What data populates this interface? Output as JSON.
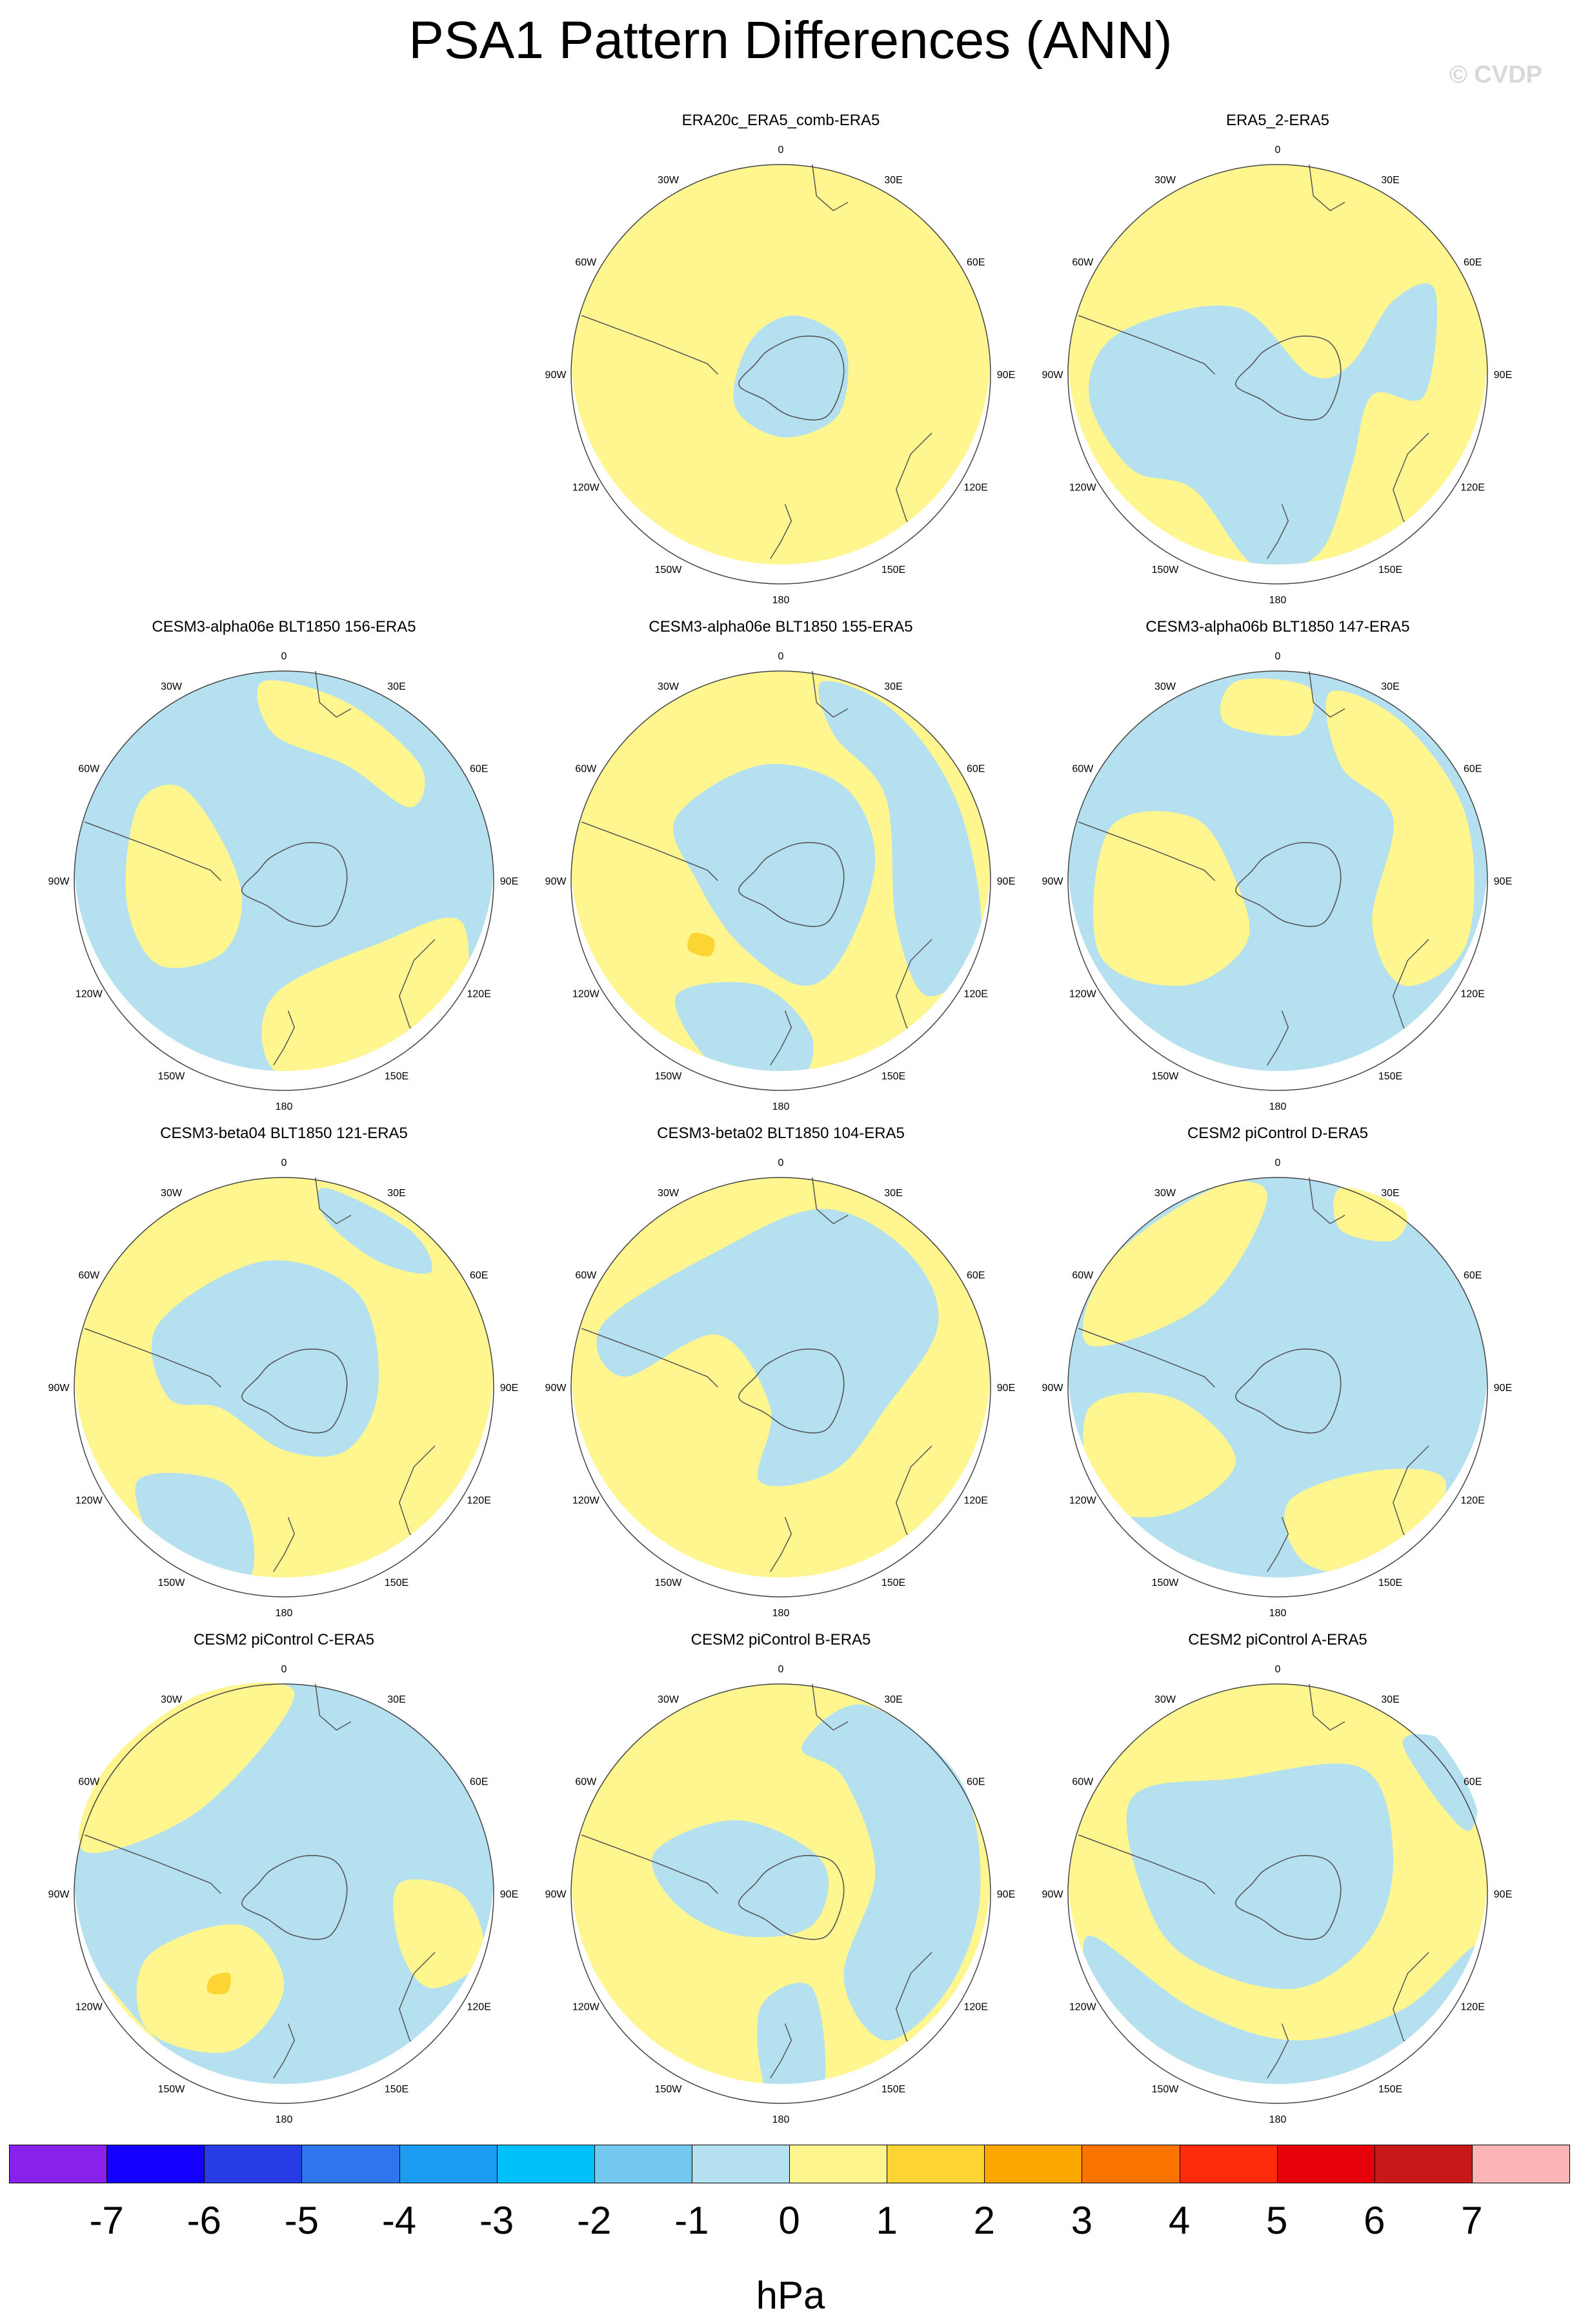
{
  "title": "PSA1 Pattern Differences (ANN)",
  "watermark": "© CVDP",
  "colors": {
    "pos": "#fff68f",
    "neg": "#b4e0f0",
    "pos2": "#fcd534",
    "coast": "#555555"
  },
  "lon_labels": [
    "0",
    "30E",
    "60E",
    "90E",
    "120E",
    "150E",
    "180",
    "150W",
    "120W",
    "90W",
    "60W",
    "30W"
  ],
  "panels": [
    {
      "title": "ERA20c_ERA5_comb-ERA5",
      "base": "pos",
      "blobs": [
        {
          "c": "neg",
          "pts": [
            [
              -0.15,
              0.15
            ],
            [
              0.05,
              0.28
            ],
            [
              0.28,
              0.18
            ],
            [
              0.32,
              -0.02
            ],
            [
              0.25,
              -0.22
            ],
            [
              0.0,
              -0.3
            ],
            [
              -0.22,
              -0.15
            ]
          ]
        }
      ]
    },
    {
      "title": "ERA5_2-ERA5",
      "base": "pos",
      "blobs": [
        {
          "c": "neg",
          "pts": [
            [
              -0.75,
              0.2
            ],
            [
              -0.2,
              0.32
            ],
            [
              0.15,
              0.0
            ],
            [
              0.35,
              0.05
            ],
            [
              0.55,
              0.35
            ],
            [
              0.75,
              0.4
            ],
            [
              0.7,
              -0.1
            ],
            [
              0.45,
              -0.1
            ],
            [
              0.35,
              -0.45
            ],
            [
              0.2,
              -0.85
            ],
            [
              -0.1,
              -0.92
            ],
            [
              -0.4,
              -0.55
            ],
            [
              -0.7,
              -0.45
            ],
            [
              -0.9,
              -0.1
            ]
          ]
        }
      ]
    },
    {
      "title": "CESM3-alpha06e BLT1850 156-ERA5",
      "base": "neg",
      "blobs": [
        {
          "c": "pos",
          "pts": [
            [
              -0.7,
              0.35
            ],
            [
              -0.5,
              0.45
            ],
            [
              -0.3,
              0.2
            ],
            [
              -0.2,
              -0.1
            ],
            [
              -0.3,
              -0.35
            ],
            [
              -0.6,
              -0.4
            ],
            [
              -0.75,
              -0.1
            ]
          ]
        },
        {
          "c": "pos",
          "pts": [
            [
              -0.1,
              0.95
            ],
            [
              0.3,
              0.85
            ],
            [
              0.65,
              0.55
            ],
            [
              0.6,
              0.35
            ],
            [
              0.3,
              0.55
            ],
            [
              -0.05,
              0.7
            ]
          ]
        },
        {
          "c": "pos",
          "pts": [
            [
              -0.05,
              -0.55
            ],
            [
              0.45,
              -0.3
            ],
            [
              0.85,
              -0.2
            ],
            [
              0.8,
              -0.75
            ],
            [
              0.35,
              -0.95
            ],
            [
              -0.05,
              -0.9
            ]
          ]
        }
      ]
    },
    {
      "title": "CESM3-alpha06e BLT1850 155-ERA5",
      "base": "pos",
      "blobs": [
        {
          "c": "neg",
          "pts": [
            [
              -0.5,
              0.3
            ],
            [
              -0.1,
              0.55
            ],
            [
              0.3,
              0.45
            ],
            [
              0.45,
              0.1
            ],
            [
              0.3,
              -0.35
            ],
            [
              0.1,
              -0.5
            ],
            [
              -0.2,
              -0.3
            ],
            [
              -0.4,
              0.0
            ]
          ]
        },
        {
          "c": "neg",
          "pts": [
            [
              0.2,
              0.95
            ],
            [
              0.55,
              0.8
            ],
            [
              0.85,
              0.35
            ],
            [
              0.95,
              -0.3
            ],
            [
              0.7,
              -0.55
            ],
            [
              0.55,
              -0.2
            ],
            [
              0.5,
              0.4
            ],
            [
              0.25,
              0.7
            ]
          ]
        },
        {
          "c": "neg",
          "pts": [
            [
              -0.5,
              -0.55
            ],
            [
              -0.1,
              -0.5
            ],
            [
              0.15,
              -0.75
            ],
            [
              0.05,
              -0.98
            ],
            [
              -0.3,
              -0.9
            ]
          ]
        },
        {
          "c": "pos2",
          "pts": [
            [
              -0.42,
              -0.25
            ],
            [
              -0.32,
              -0.28
            ],
            [
              -0.34,
              -0.36
            ],
            [
              -0.44,
              -0.33
            ]
          ]
        }
      ]
    },
    {
      "title": "CESM3-alpha06b BLT1850 147-ERA5",
      "base": "neg",
      "blobs": [
        {
          "c": "pos",
          "pts": [
            [
              -0.8,
              0.25
            ],
            [
              -0.4,
              0.3
            ],
            [
              -0.2,
              0.0
            ],
            [
              -0.15,
              -0.3
            ],
            [
              -0.45,
              -0.5
            ],
            [
              -0.85,
              -0.35
            ]
          ]
        },
        {
          "c": "pos",
          "pts": [
            [
              0.25,
              0.9
            ],
            [
              0.6,
              0.75
            ],
            [
              0.9,
              0.3
            ],
            [
              0.9,
              -0.3
            ],
            [
              0.6,
              -0.5
            ],
            [
              0.45,
              -0.2
            ],
            [
              0.55,
              0.3
            ],
            [
              0.3,
              0.55
            ]
          ]
        },
        {
          "c": "pos",
          "pts": [
            [
              -0.2,
              0.95
            ],
            [
              0.15,
              0.92
            ],
            [
              0.1,
              0.7
            ],
            [
              -0.25,
              0.75
            ]
          ]
        }
      ]
    },
    {
      "title": "CESM3-beta04 BLT1850 121-ERA5",
      "base": "pos",
      "blobs": [
        {
          "c": "neg",
          "pts": [
            [
              -0.6,
              0.3
            ],
            [
              -0.1,
              0.6
            ],
            [
              0.35,
              0.45
            ],
            [
              0.45,
              0.0
            ],
            [
              0.3,
              -0.3
            ],
            [
              0.0,
              -0.3
            ],
            [
              -0.3,
              -0.1
            ],
            [
              -0.55,
              -0.05
            ]
          ]
        },
        {
          "c": "neg",
          "pts": [
            [
              0.2,
              0.95
            ],
            [
              0.6,
              0.75
            ],
            [
              0.7,
              0.55
            ],
            [
              0.45,
              0.6
            ],
            [
              0.2,
              0.8
            ]
          ]
        },
        {
          "c": "neg",
          "pts": [
            [
              -0.7,
              -0.45
            ],
            [
              -0.3,
              -0.45
            ],
            [
              -0.15,
              -0.7
            ],
            [
              -0.2,
              -0.95
            ],
            [
              -0.55,
              -0.85
            ]
          ]
        }
      ]
    },
    {
      "title": "CESM3-beta02 BLT1850 104-ERA5",
      "base": "pos",
      "blobs": [
        {
          "c": "neg",
          "pts": [
            [
              -0.85,
              0.3
            ],
            [
              -0.3,
              0.65
            ],
            [
              0.2,
              0.85
            ],
            [
              0.6,
              0.65
            ],
            [
              0.75,
              0.3
            ],
            [
              0.5,
              -0.1
            ],
            [
              0.25,
              -0.4
            ],
            [
              -0.1,
              -0.45
            ],
            [
              -0.05,
              -0.1
            ],
            [
              -0.3,
              0.25
            ],
            [
              -0.75,
              0.05
            ]
          ]
        }
      ]
    },
    {
      "title": "CESM2 piControl D-ERA5",
      "base": "neg",
      "blobs": [
        {
          "c": "pos",
          "pts": [
            [
              -0.9,
              0.2
            ],
            [
              -0.35,
              0.4
            ],
            [
              -0.05,
              0.9
            ],
            [
              -0.3,
              0.95
            ],
            [
              -0.8,
              0.6
            ]
          ]
        },
        {
          "c": "pos",
          "pts": [
            [
              -0.9,
              -0.1
            ],
            [
              -0.5,
              -0.05
            ],
            [
              -0.2,
              -0.35
            ],
            [
              -0.5,
              -0.6
            ],
            [
              -0.85,
              -0.55
            ]
          ]
        },
        {
          "c": "pos",
          "pts": [
            [
              0.05,
              -0.55
            ],
            [
              0.45,
              -0.4
            ],
            [
              0.8,
              -0.45
            ],
            [
              0.6,
              -0.85
            ],
            [
              0.15,
              -0.85
            ]
          ]
        },
        {
          "c": "pos",
          "pts": [
            [
              0.3,
              0.95
            ],
            [
              0.6,
              0.85
            ],
            [
              0.55,
              0.7
            ],
            [
              0.3,
              0.75
            ]
          ]
        }
      ]
    },
    {
      "title": "CESM2 piControl C-ERA5",
      "base": "neg",
      "blobs": [
        {
          "c": "pos",
          "pts": [
            [
              -0.95,
              0.2
            ],
            [
              -0.4,
              0.4
            ],
            [
              0.05,
              0.95
            ],
            [
              -0.4,
              0.95
            ],
            [
              -0.85,
              0.6
            ]
          ]
        },
        {
          "c": "pos",
          "pts": [
            [
              -0.65,
              -0.3
            ],
            [
              -0.2,
              -0.15
            ],
            [
              0.0,
              -0.45
            ],
            [
              -0.25,
              -0.75
            ],
            [
              -0.65,
              -0.65
            ]
          ]
        },
        {
          "c": "pos",
          "pts": [
            [
              0.55,
              0.05
            ],
            [
              0.85,
              0.0
            ],
            [
              0.95,
              -0.3
            ],
            [
              0.7,
              -0.45
            ],
            [
              0.55,
              -0.25
            ]
          ]
        },
        {
          "c": "pos",
          "pts": [
            [
              -0.95,
              -0.35
            ],
            [
              -0.7,
              -0.6
            ],
            [
              -0.4,
              -0.95
            ],
            [
              -0.95,
              -0.7
            ]
          ]
        },
        {
          "c": "pos2",
          "pts": [
            [
              -0.35,
              -0.4
            ],
            [
              -0.26,
              -0.38
            ],
            [
              -0.27,
              -0.47
            ],
            [
              -0.36,
              -0.47
            ]
          ]
        }
      ]
    },
    {
      "title": "CESM2 piControl B-ERA5",
      "base": "pos",
      "blobs": [
        {
          "c": "neg",
          "pts": [
            [
              -0.6,
              0.2
            ],
            [
              -0.2,
              0.35
            ],
            [
              0.2,
              0.15
            ],
            [
              0.15,
              -0.15
            ],
            [
              -0.2,
              -0.2
            ],
            [
              -0.5,
              -0.05
            ]
          ]
        },
        {
          "c": "neg",
          "pts": [
            [
              0.1,
              0.7
            ],
            [
              0.4,
              0.9
            ],
            [
              0.85,
              0.55
            ],
            [
              0.95,
              0.0
            ],
            [
              0.8,
              -0.45
            ],
            [
              0.5,
              -0.7
            ],
            [
              0.3,
              -0.4
            ],
            [
              0.45,
              0.1
            ],
            [
              0.3,
              0.55
            ]
          ]
        },
        {
          "c": "neg",
          "pts": [
            [
              -0.1,
              -0.55
            ],
            [
              0.15,
              -0.45
            ],
            [
              0.2,
              -0.95
            ],
            [
              -0.05,
              -0.98
            ]
          ]
        }
      ]
    },
    {
      "title": "CESM2 piControl A-ERA5",
      "base": "pos",
      "blobs": [
        {
          "c": "neg",
          "pts": [
            [
              -0.7,
              0.45
            ],
            [
              -0.2,
              0.55
            ],
            [
              0.4,
              0.6
            ],
            [
              0.55,
              0.2
            ],
            [
              0.45,
              -0.2
            ],
            [
              0.1,
              -0.45
            ],
            [
              -0.35,
              -0.35
            ],
            [
              -0.6,
              -0.1
            ]
          ]
        },
        {
          "c": "neg",
          "pts": [
            [
              -0.9,
              -0.2
            ],
            [
              -0.4,
              -0.55
            ],
            [
              0.1,
              -0.7
            ],
            [
              0.6,
              -0.55
            ],
            [
              0.95,
              -0.25
            ],
            [
              0.8,
              -0.7
            ],
            [
              0.3,
              -0.95
            ],
            [
              -0.3,
              -0.95
            ],
            [
              -0.8,
              -0.6
            ]
          ]
        },
        {
          "c": "neg",
          "pts": [
            [
              0.6,
              0.7
            ],
            [
              0.9,
              0.3
            ],
            [
              0.95,
              0.6
            ],
            [
              0.75,
              0.75
            ]
          ]
        }
      ]
    }
  ],
  "colorbar": {
    "colors": [
      "#8a20ec",
      "#1400ff",
      "#283ce6",
      "#2f75eb",
      "#1c9cf0",
      "#00c0f9",
      "#73c8f0",
      "#b4e0f0",
      "#fff68f",
      "#fcd534",
      "#fca600",
      "#fc7400",
      "#fc2c0c",
      "#e6000a",
      "#c81818",
      "#fcb4b4"
    ],
    "labels": [
      "-7",
      "-6",
      "-5",
      "-4",
      "-3",
      "-2",
      "-1",
      "0",
      "1",
      "2",
      "3",
      "4",
      "5",
      "6",
      "7"
    ],
    "units": "hPa"
  }
}
